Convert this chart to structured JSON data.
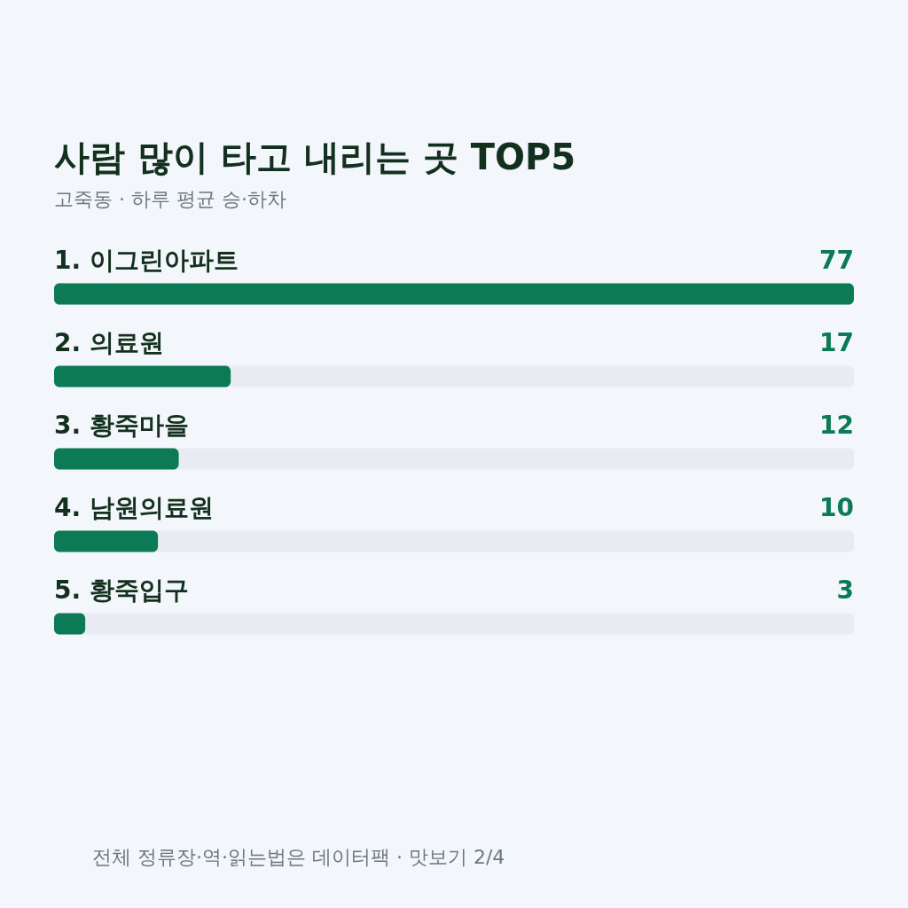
{
  "chart_data": {
    "type": "bar",
    "orientation": "horizontal",
    "title": "사람 많이 타고 내리는 곳 TOP5",
    "subtitle": "고죽동 · 하루 평균 승·하차",
    "categories": [
      "1. 이그린아파트",
      "2. 의료원",
      "3. 황죽마을",
      "4. 남원의료원",
      "5. 황죽입구"
    ],
    "values": [
      77,
      17,
      12,
      10,
      3
    ],
    "color": "#0b7a55",
    "xlim": [
      0,
      77
    ],
    "data_labels": true,
    "tick_labels": "y",
    "annotations": [
      "전체 정류장·역·읽는법은 데이터팩 · 맛보기 2/4"
    ]
  }
}
